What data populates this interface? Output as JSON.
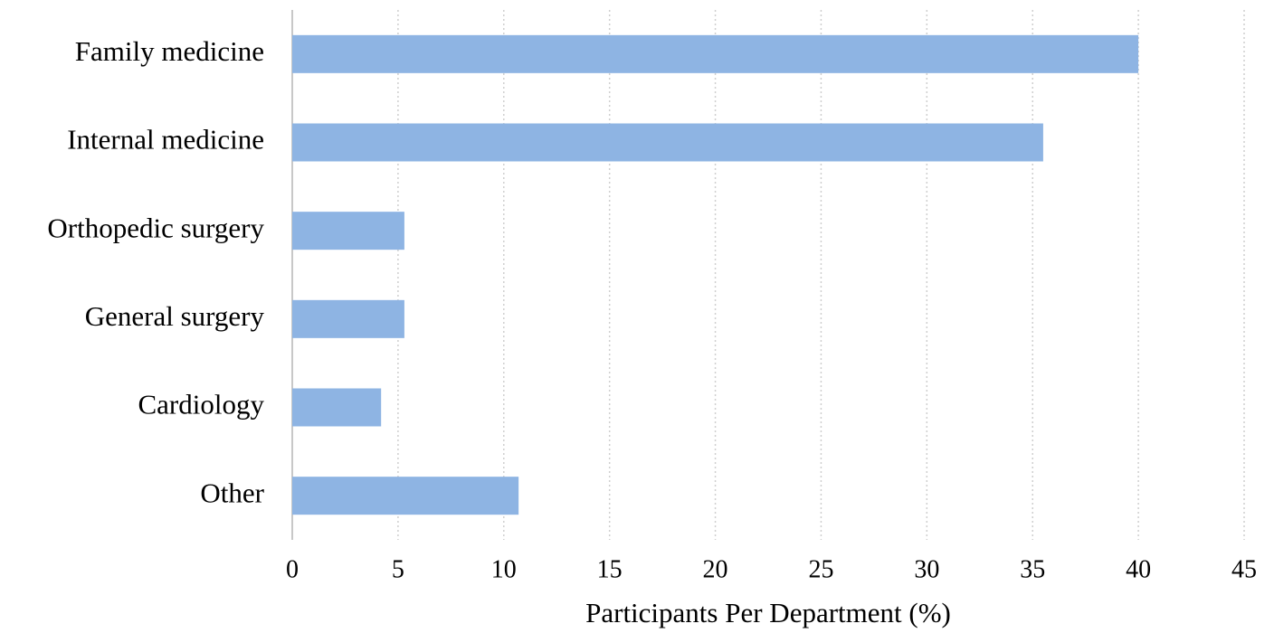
{
  "chart_data": {
    "type": "bar",
    "orientation": "horizontal",
    "categories": [
      "Family medicine",
      "Internal medicine",
      "Orthopedic surgery",
      "General surgery",
      "Cardiology",
      "Other"
    ],
    "values": [
      40,
      35.5,
      5.3,
      5.3,
      4.2,
      10.7
    ],
    "color": "#8eb4e3",
    "xlabel": "Participants Per Department (%)",
    "xlim": [
      0,
      45
    ],
    "xticks": [
      0,
      5,
      10,
      15,
      20,
      25,
      30,
      35,
      40,
      45
    ],
    "grid": true
  }
}
